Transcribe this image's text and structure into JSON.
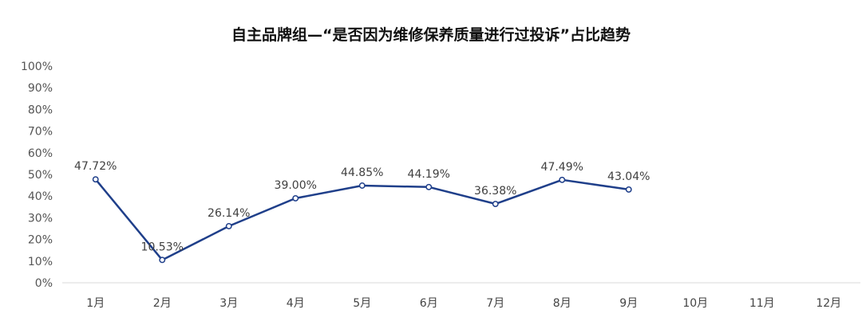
{
  "chart_data": {
    "type": "line",
    "title": "自主品牌组—“是否因为维修保养质量进行过投诉”占比趋势",
    "xlabel": "",
    "ylabel": "",
    "categories": [
      "1月",
      "2月",
      "3月",
      "4月",
      "5月",
      "6月",
      "7月",
      "8月",
      "9月",
      "10月",
      "11月",
      "12月"
    ],
    "y_ticks": [
      "0%",
      "10%",
      "20%",
      "30%",
      "40%",
      "50%",
      "60%",
      "70%",
      "80%",
      "90%",
      "100%"
    ],
    "ylim": [
      0,
      100
    ],
    "grid": false,
    "legend": "none",
    "series": [
      {
        "values": [
          47.72,
          10.53,
          26.14,
          39.0,
          44.85,
          44.19,
          36.38,
          47.49,
          43.04,
          null,
          null,
          null
        ],
        "labels": [
          "47.72%",
          "10.53%",
          "26.14%",
          "39.00%",
          "44.85%",
          "44.19%",
          "36.38%",
          "47.49%",
          "43.04%",
          "",
          "",
          ""
        ],
        "color": "#1f3f8a"
      }
    ]
  }
}
